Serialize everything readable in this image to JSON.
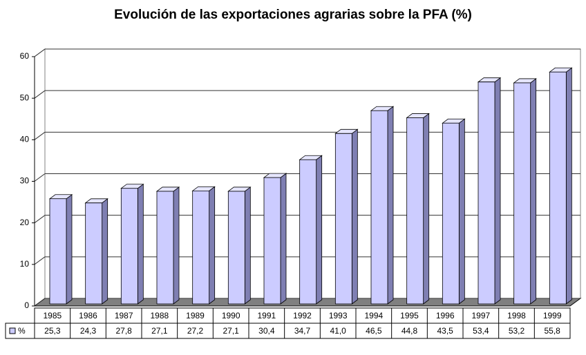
{
  "chart_data": {
    "type": "bar3d",
    "title": "Evolución de las exportaciones agrarias sobre la PFA (%)",
    "categories": [
      "1985",
      "1986",
      "1987",
      "1988",
      "1989",
      "1990",
      "1991",
      "1992",
      "1993",
      "1994",
      "1995",
      "1996",
      "1997",
      "1998",
      "1999"
    ],
    "series": [
      {
        "name": "%",
        "color": "#ccccff",
        "values": [
          25.3,
          24.3,
          27.8,
          27.1,
          27.2,
          27.1,
          30.4,
          34.7,
          41.0,
          46.5,
          44.8,
          43.5,
          53.4,
          53.2,
          55.8
        ],
        "value_labels": [
          "25,3",
          "24,3",
          "27,8",
          "27,1",
          "27,2",
          "27,1",
          "30,4",
          "34,7",
          "41,0",
          "46,5",
          "44,8",
          "43,5",
          "53,4",
          "53,2",
          "55,8"
        ]
      }
    ],
    "ylim": [
      0,
      60
    ],
    "yticks": [
      0,
      10,
      20,
      30,
      40,
      50,
      60
    ],
    "grid": true
  }
}
